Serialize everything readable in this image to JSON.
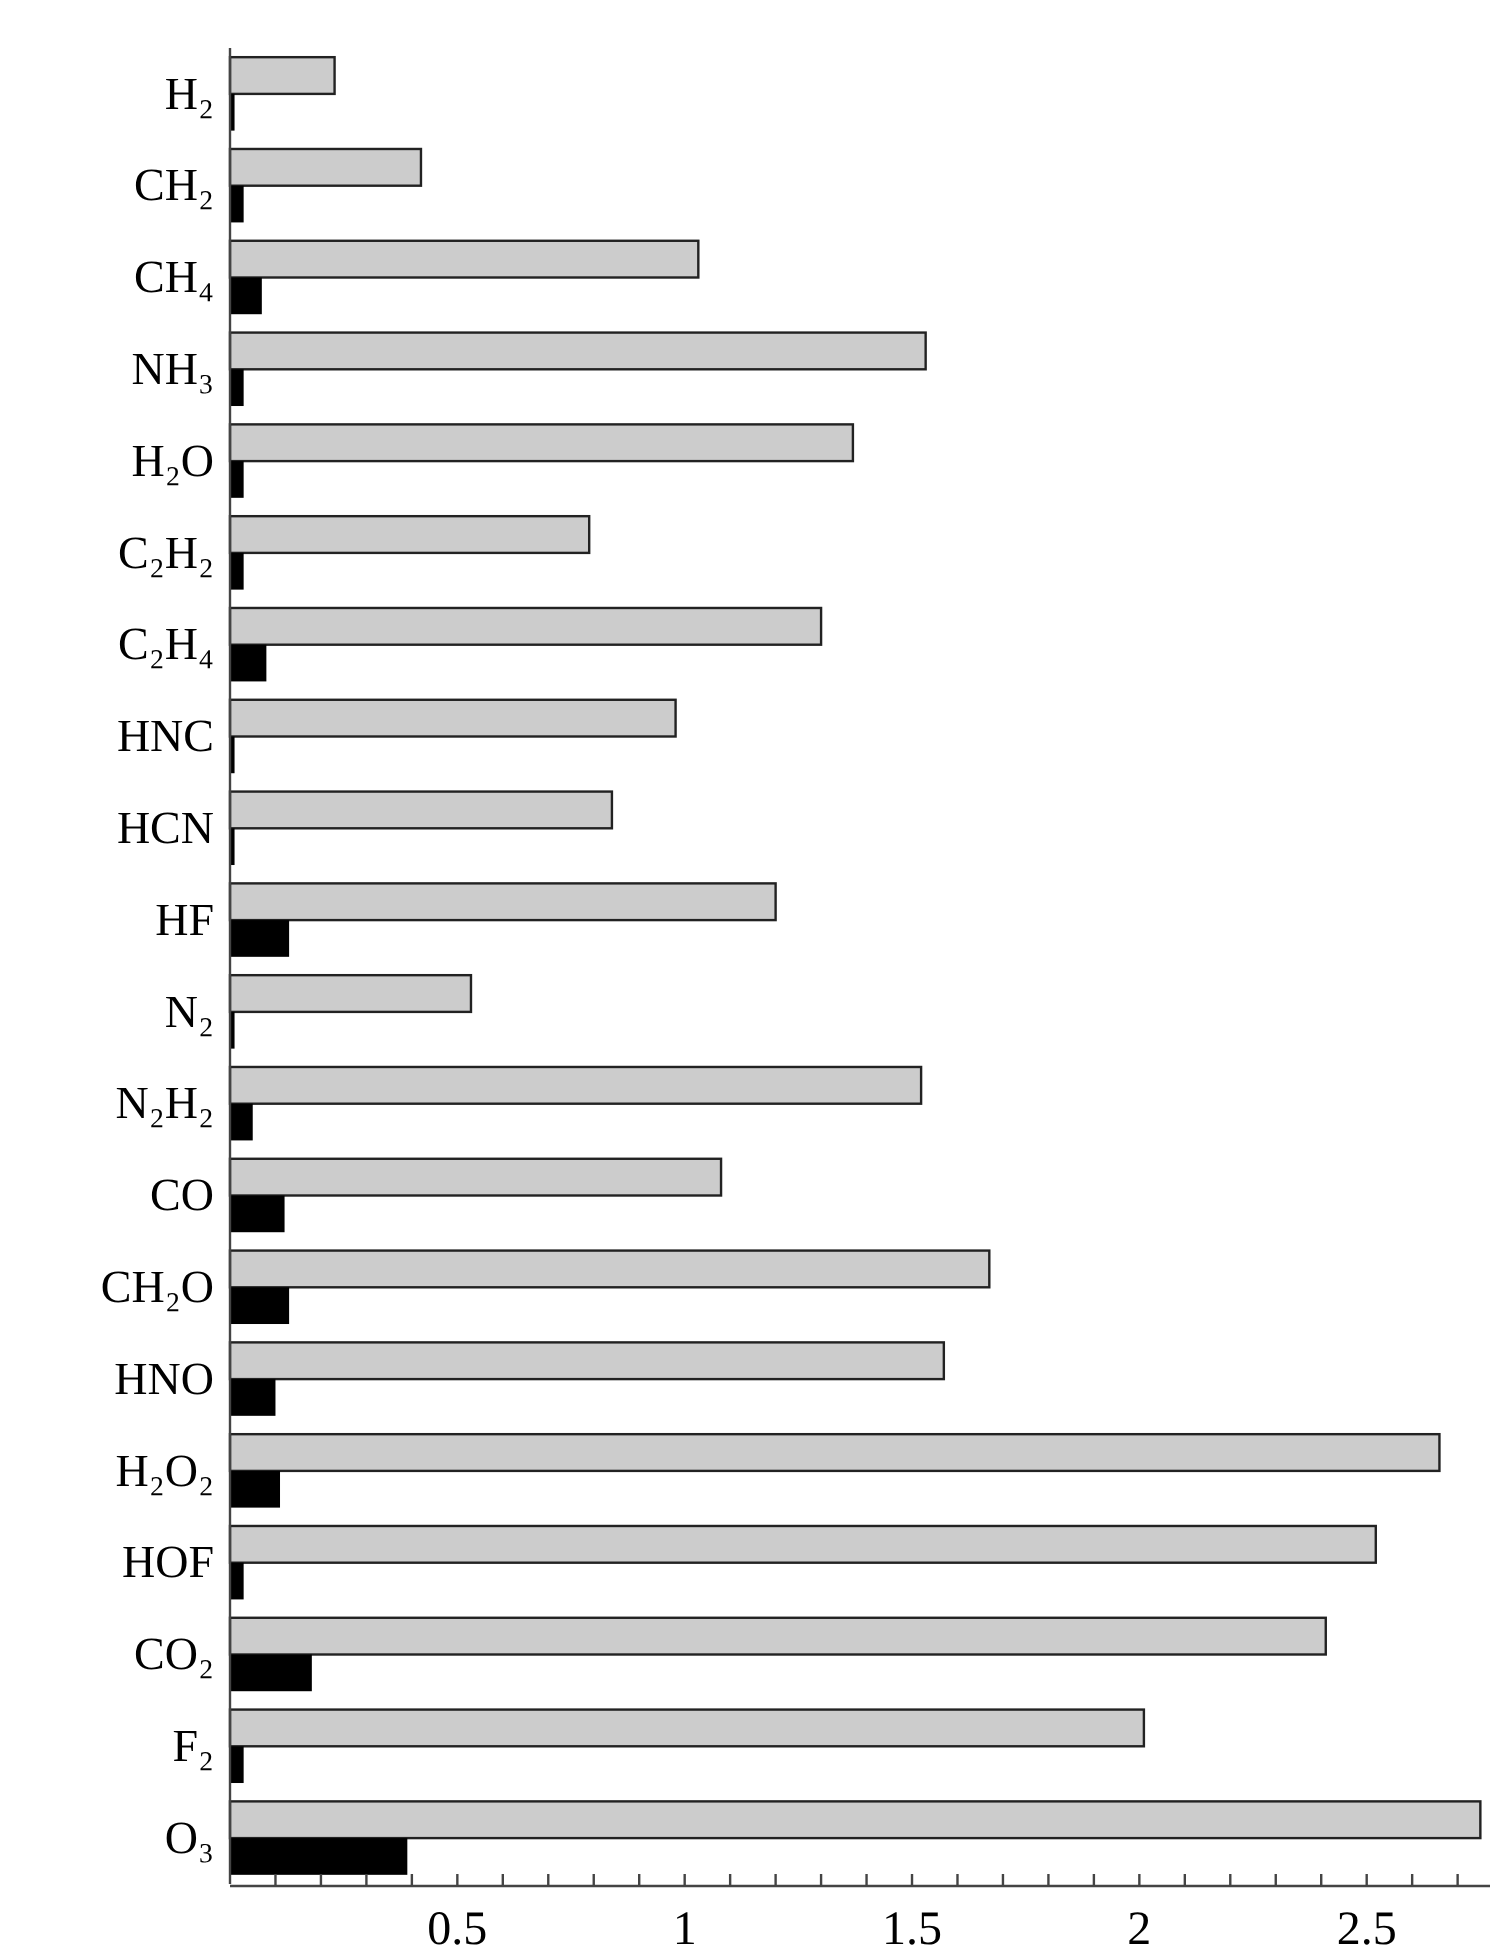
{
  "chart_data": {
    "type": "bar",
    "orientation": "horizontal",
    "categories": [
      "H₂",
      "CH₂",
      "CH₄",
      "NH₃",
      "H₂O",
      "C₂H₂",
      "C₂H₄",
      "HNC",
      "HCN",
      "HF",
      "N₂",
      "N₂H₂",
      "CO",
      "CH₂O",
      "HNO",
      "H₂O₂",
      "HOF",
      "CO₂",
      "F₂",
      "O₃"
    ],
    "series": [
      {
        "color": "#cccccc",
        "values": [
          0.23,
          0.42,
          1.03,
          1.53,
          1.37,
          0.79,
          1.3,
          0.98,
          0.84,
          1.2,
          0.53,
          1.52,
          1.08,
          1.67,
          1.57,
          2.66,
          2.52,
          2.41,
          2.01,
          2.75
        ]
      },
      {
        "color": "#000000",
        "values": [
          0.01,
          0.03,
          0.07,
          0.03,
          0.03,
          0.03,
          0.08,
          0.01,
          0.01,
          0.13,
          0.01,
          0.05,
          0.12,
          0.13,
          0.1,
          0.11,
          0.03,
          0.18,
          0.03,
          0.39
        ]
      }
    ],
    "xlim": [
      0,
      2.78
    ],
    "xticks": [
      {
        "value": 0.1,
        "label": null
      },
      {
        "value": 0.2,
        "label": null
      },
      {
        "value": 0.3,
        "label": null
      },
      {
        "value": 0.4,
        "label": null
      },
      0.5,
      {
        "value": 0.6,
        "label": null
      },
      {
        "value": 0.7,
        "label": null
      },
      {
        "value": 0.8,
        "label": null
      },
      {
        "value": 0.9,
        "label": null
      },
      1,
      {
        "value": 1.1,
        "label": null
      },
      {
        "value": 1.2,
        "label": null
      },
      {
        "value": 1.3,
        "label": null
      },
      {
        "value": 1.4,
        "label": null
      },
      1.5,
      {
        "value": 1.6,
        "label": null
      },
      {
        "value": 1.7,
        "label": null
      },
      {
        "value": 1.8,
        "label": null
      },
      {
        "value": 1.9,
        "label": null
      },
      2,
      {
        "value": 2.1,
        "label": null
      },
      {
        "value": 2.2,
        "label": null
      },
      {
        "value": 2.3,
        "label": null
      },
      {
        "value": 2.4,
        "label": null
      },
      2.5,
      {
        "value": 2.6,
        "label": null
      },
      {
        "value": 2.7,
        "label": null
      }
    ]
  }
}
